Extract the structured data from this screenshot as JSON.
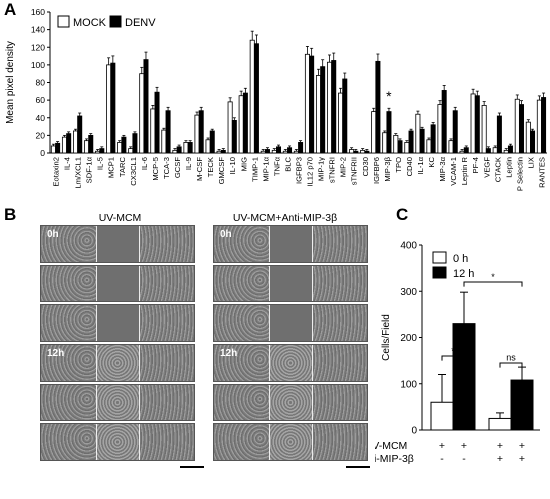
{
  "panels": {
    "a": "A",
    "b": "B",
    "c": "C"
  },
  "chart_data": [
    {
      "type": "bar",
      "ylabel": "Mean pixel density",
      "ylim": [
        0,
        160
      ],
      "yticks": [
        0,
        20,
        40,
        60,
        80,
        100,
        120,
        140,
        160
      ],
      "legend": "top-left",
      "categories": [
        "Eotaxin2",
        "IL-4",
        "Lm/XCL1",
        "SDF-1α",
        "IL-5",
        "MCP1",
        "TARC",
        "CX3CL1",
        "IL-6",
        "MCP-5",
        "TCA-3",
        "GCSF",
        "IL-9",
        "M-CSF",
        "TECK",
        "GMCSF",
        "IL-10",
        "MIG",
        "TIMP-1",
        "MIP-1α",
        "TNFα",
        "BLC",
        "IGFBP3",
        "IL12 p70",
        "MIP-1γ",
        "sTNFRI",
        "MIP-2",
        "sTNFRII",
        "CD30",
        "IGFBP6",
        "MIP-3β",
        "TPO",
        "CD40",
        "IL-1α",
        "KC",
        "MIP-3α",
        "VCAM-1",
        "Leptin R",
        "PF-4",
        "VEGF",
        "CTACK",
        "Leptin",
        "P Selectin",
        "LIX",
        "RANTES"
      ],
      "series": [
        {
          "name": "MOCK",
          "color": "#ffffff",
          "values": [
            8,
            18,
            25,
            14,
            2,
            100,
            12,
            5,
            90,
            50,
            26,
            3,
            12,
            43,
            15,
            2,
            58,
            65,
            128,
            2,
            3,
            2,
            2,
            112,
            88,
            103,
            68,
            4,
            3,
            47,
            23,
            20,
            12,
            44,
            15,
            55,
            14,
            2,
            67,
            54,
            6,
            3,
            61,
            35,
            60
          ]
        },
        {
          "name": "DENV",
          "color": "#000000",
          "values": [
            11,
            22,
            42,
            20,
            5,
            102,
            18,
            22,
            106,
            69,
            48,
            7,
            12,
            48,
            25,
            3,
            37,
            68,
            124,
            4,
            7,
            6,
            12,
            110,
            98,
            105,
            84,
            2,
            2,
            104,
            47,
            14,
            25,
            27,
            32,
            71,
            48,
            6,
            65,
            5,
            42,
            8,
            55,
            25,
            63
          ]
        }
      ],
      "annotations": [
        "*"
      ]
    },
    {
      "type": "bar",
      "ylabel": "Cells/Field",
      "ylim": [
        0,
        400
      ],
      "yticks": [
        0,
        100,
        200,
        300,
        400
      ],
      "legend": "top-left",
      "categories": [
        "UV-MCM + / Anti-MIP-3β −",
        "UV-MCM + / Anti-MIP-3β +"
      ],
      "series": [
        {
          "name": "0 h",
          "color": "#ffffff",
          "values": [
            60,
            25
          ]
        },
        {
          "name": "12 h",
          "color": "#000000",
          "values": [
            230,
            108
          ]
        }
      ],
      "rows": [
        {
          "label": "UV-MCM",
          "signs": [
            "+",
            "+",
            "+",
            "+"
          ]
        },
        {
          "label": "Anti-MIP-3β",
          "signs": [
            "-",
            "-",
            "+",
            "+"
          ]
        }
      ],
      "annotations": [
        "*",
        "*",
        "ns"
      ]
    }
  ],
  "images": {
    "left_title": "UV-MCM",
    "right_title": "UV-MCM+Anti-MIP-3β",
    "time_0": "0h",
    "time_12": "12h"
  }
}
